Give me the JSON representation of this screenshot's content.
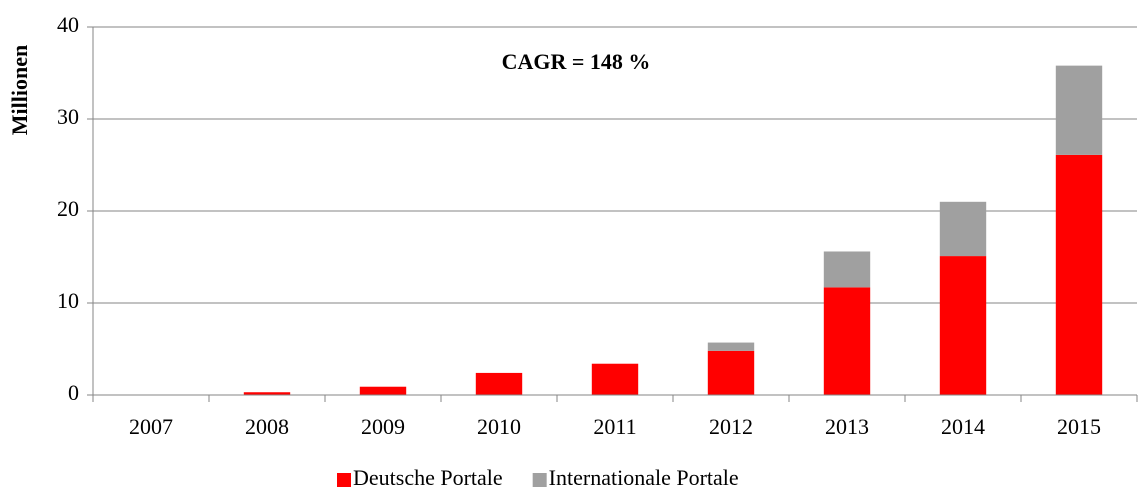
{
  "chart_data": {
    "type": "stacked_bar",
    "y_label": "Millionen",
    "annotation": "CAGR = 148 %",
    "categories": [
      "2007",
      "2008",
      "2009",
      "2010",
      "2011",
      "2012",
      "2013",
      "2014",
      "2015"
    ],
    "series": [
      {
        "name": "Deutsche Portale",
        "color": "#ff0000",
        "values": [
          0,
          0.3,
          0.9,
          2.4,
          3.4,
          4.8,
          11.7,
          15.1,
          26.1
        ]
      },
      {
        "name": "Internationale Portale",
        "color": "#a0a0a0",
        "values": [
          0,
          0,
          0,
          0,
          0,
          0.9,
          3.9,
          5.9,
          9.7
        ]
      }
    ],
    "ylim": [
      0,
      40
    ],
    "yticks": [
      0,
      10,
      20,
      30,
      40
    ],
    "grid": true,
    "legend": "bottom"
  }
}
